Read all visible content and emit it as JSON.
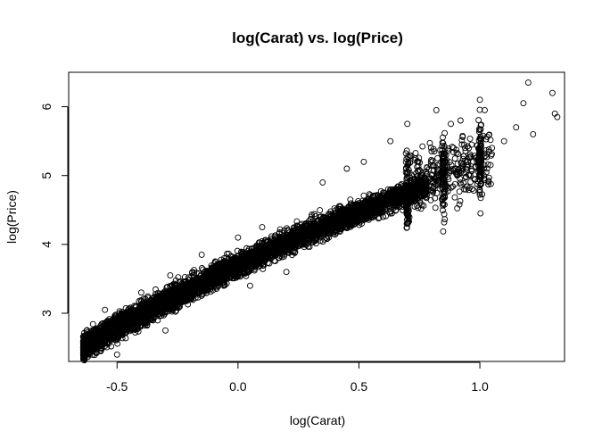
{
  "chart_data": {
    "type": "scatter",
    "title": "log(Carat) vs. log(Price)",
    "xlabel": "log(Carat)",
    "ylabel": "log(Price)",
    "xlim": [
      -0.7,
      1.35
    ],
    "ylim": [
      2.3,
      6.5
    ],
    "x_ticks": [
      {
        "value": -0.5,
        "label": "-0.5"
      },
      {
        "value": 0.0,
        "label": "0.0"
      },
      {
        "value": 0.5,
        "label": "0.5"
      },
      {
        "value": 1.0,
        "label": "1.0"
      }
    ],
    "y_ticks": [
      {
        "value": 3,
        "label": "3"
      },
      {
        "value": 4,
        "label": "4"
      },
      {
        "value": 5,
        "label": "5"
      },
      {
        "value": 6,
        "label": "6"
      }
    ],
    "grid": false,
    "marker": "open-circle",
    "point_color": "#000000",
    "trend": {
      "slope": 1.68,
      "intercept": 3.7,
      "x_min": -0.64,
      "x_max": 1.31
    },
    "points": [
      [
        -0.62,
        2.58
      ],
      [
        -0.6,
        2.64
      ],
      [
        -0.55,
        2.62
      ],
      [
        -0.5,
        2.72
      ],
      [
        -0.45,
        2.86
      ],
      [
        -0.4,
        2.95
      ],
      [
        -0.35,
        3.1
      ],
      [
        -0.3,
        3.15
      ],
      [
        -0.25,
        3.28
      ],
      [
        -0.2,
        3.35
      ],
      [
        -0.15,
        3.48
      ],
      [
        -0.1,
        3.55
      ],
      [
        -0.05,
        3.63
      ],
      [
        0.0,
        3.72
      ],
      [
        0.05,
        3.82
      ],
      [
        0.1,
        3.9
      ],
      [
        0.15,
        4.0
      ],
      [
        0.2,
        4.05
      ],
      [
        0.25,
        4.15
      ],
      [
        0.3,
        4.22
      ],
      [
        0.35,
        4.3
      ],
      [
        0.4,
        4.4
      ],
      [
        0.45,
        4.5
      ],
      [
        0.5,
        4.6
      ],
      [
        0.55,
        4.65
      ],
      [
        0.6,
        4.75
      ],
      [
        0.65,
        4.8
      ],
      [
        0.7,
        4.9
      ],
      [
        0.75,
        4.95
      ],
      [
        0.8,
        5.0
      ],
      [
        0.85,
        5.05
      ],
      [
        0.9,
        5.1
      ],
      [
        0.95,
        5.2
      ],
      [
        1.0,
        5.3
      ],
      [
        1.0,
        6.1
      ],
      [
        1.02,
        5.95
      ],
      [
        1.05,
        5.4
      ],
      [
        1.1,
        5.5
      ],
      [
        1.15,
        5.7
      ],
      [
        1.18,
        6.05
      ],
      [
        1.2,
        6.35
      ],
      [
        1.22,
        5.6
      ],
      [
        1.3,
        6.2
      ],
      [
        1.31,
        5.9
      ],
      [
        1.32,
        5.85
      ],
      [
        0.82,
        5.95
      ],
      [
        0.88,
        5.75
      ],
      [
        0.92,
        5.8
      ],
      [
        0.7,
        5.75
      ],
      [
        0.63,
        5.5
      ],
      [
        0.52,
        5.2
      ],
      [
        0.45,
        5.1
      ],
      [
        0.35,
        4.9
      ],
      [
        0.42,
        4.2
      ],
      [
        0.6,
        4.4
      ],
      [
        0.68,
        4.55
      ],
      [
        0.78,
        4.8
      ],
      [
        0.98,
        4.95
      ],
      [
        1.0,
        5.1
      ],
      [
        -0.4,
        3.3
      ],
      [
        -0.28,
        3.55
      ],
      [
        -0.15,
        3.85
      ],
      [
        0.0,
        4.1
      ],
      [
        0.1,
        4.25
      ],
      [
        -0.55,
        3.05
      ],
      [
        -0.5,
        2.4
      ],
      [
        -0.62,
        2.7
      ],
      [
        -0.3,
        2.75
      ],
      [
        0.2,
        3.6
      ],
      [
        0.05,
        3.4
      ]
    ]
  }
}
